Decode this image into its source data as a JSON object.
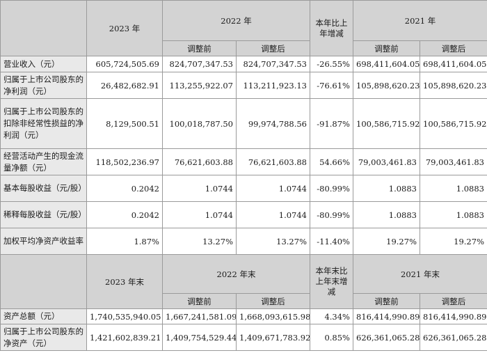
{
  "header1": {
    "y2023": "2023 年",
    "y2022": "2022 年",
    "change": "本年比上年增减",
    "y2021": "2021 年",
    "before": "调整前",
    "after": "调整后"
  },
  "rows": [
    {
      "label": "营业收入（元）",
      "values": [
        "605,724,505.69",
        "824,707,347.53",
        "824,707,347.53",
        "-26.55%",
        "698,411,604.05",
        "698,411,604.05"
      ]
    },
    {
      "label": "归属于上市公司股东的净利润（元）",
      "values": [
        "26,482,682.91",
        "113,255,922.07",
        "113,211,923.13",
        "-76.61%",
        "105,898,620.23",
        "105,898,620.23"
      ]
    },
    {
      "label": "归属于上市公司股东的扣除非经常性损益的净利润（元）",
      "values": [
        "8,129,500.51",
        "100,018,787.50",
        "99,974,788.56",
        "-91.87%",
        "100,586,715.92",
        "100,586,715.92"
      ]
    },
    {
      "label": "经营活动产生的现金流量净额（元）",
      "values": [
        "118,502,236.97",
        "76,621,603.88",
        "76,621,603.88",
        "54.66%",
        "79,003,461.83",
        "79,003,461.83"
      ]
    },
    {
      "label": "基本每股收益（元/股）",
      "values": [
        "0.2042",
        "1.0744",
        "1.0744",
        "-80.99%",
        "1.0883",
        "1.0883"
      ]
    },
    {
      "label": "稀释每股收益（元/股）",
      "values": [
        "0.2042",
        "1.0744",
        "1.0744",
        "-80.99%",
        "1.0883",
        "1.0883"
      ]
    },
    {
      "label": "加权平均净资产收益率",
      "values": [
        "1.87%",
        "13.27%",
        "13.27%",
        "-11.40%",
        "19.27%",
        "19.27%"
      ]
    }
  ],
  "header2": {
    "y2023": "2023 年末",
    "y2022": "2022 年末",
    "change": "本年末比上年末增减",
    "y2021": "2021 年末",
    "before": "调整前",
    "after": "调整后"
  },
  "rows2": [
    {
      "label": "资产总额（元）",
      "values": [
        "1,740,535,940.05",
        "1,667,241,581.09",
        "1,668,093,615.98",
        "4.34%",
        "816,414,990.89",
        "816,414,990.89"
      ]
    },
    {
      "label": "归属于上市公司股东的净资产（元）",
      "values": [
        "1,421,602,839.21",
        "1,409,754,529.44",
        "1,409,671,783.92",
        "0.85%",
        "626,361,065.28",
        "626,361,065.28"
      ]
    }
  ]
}
